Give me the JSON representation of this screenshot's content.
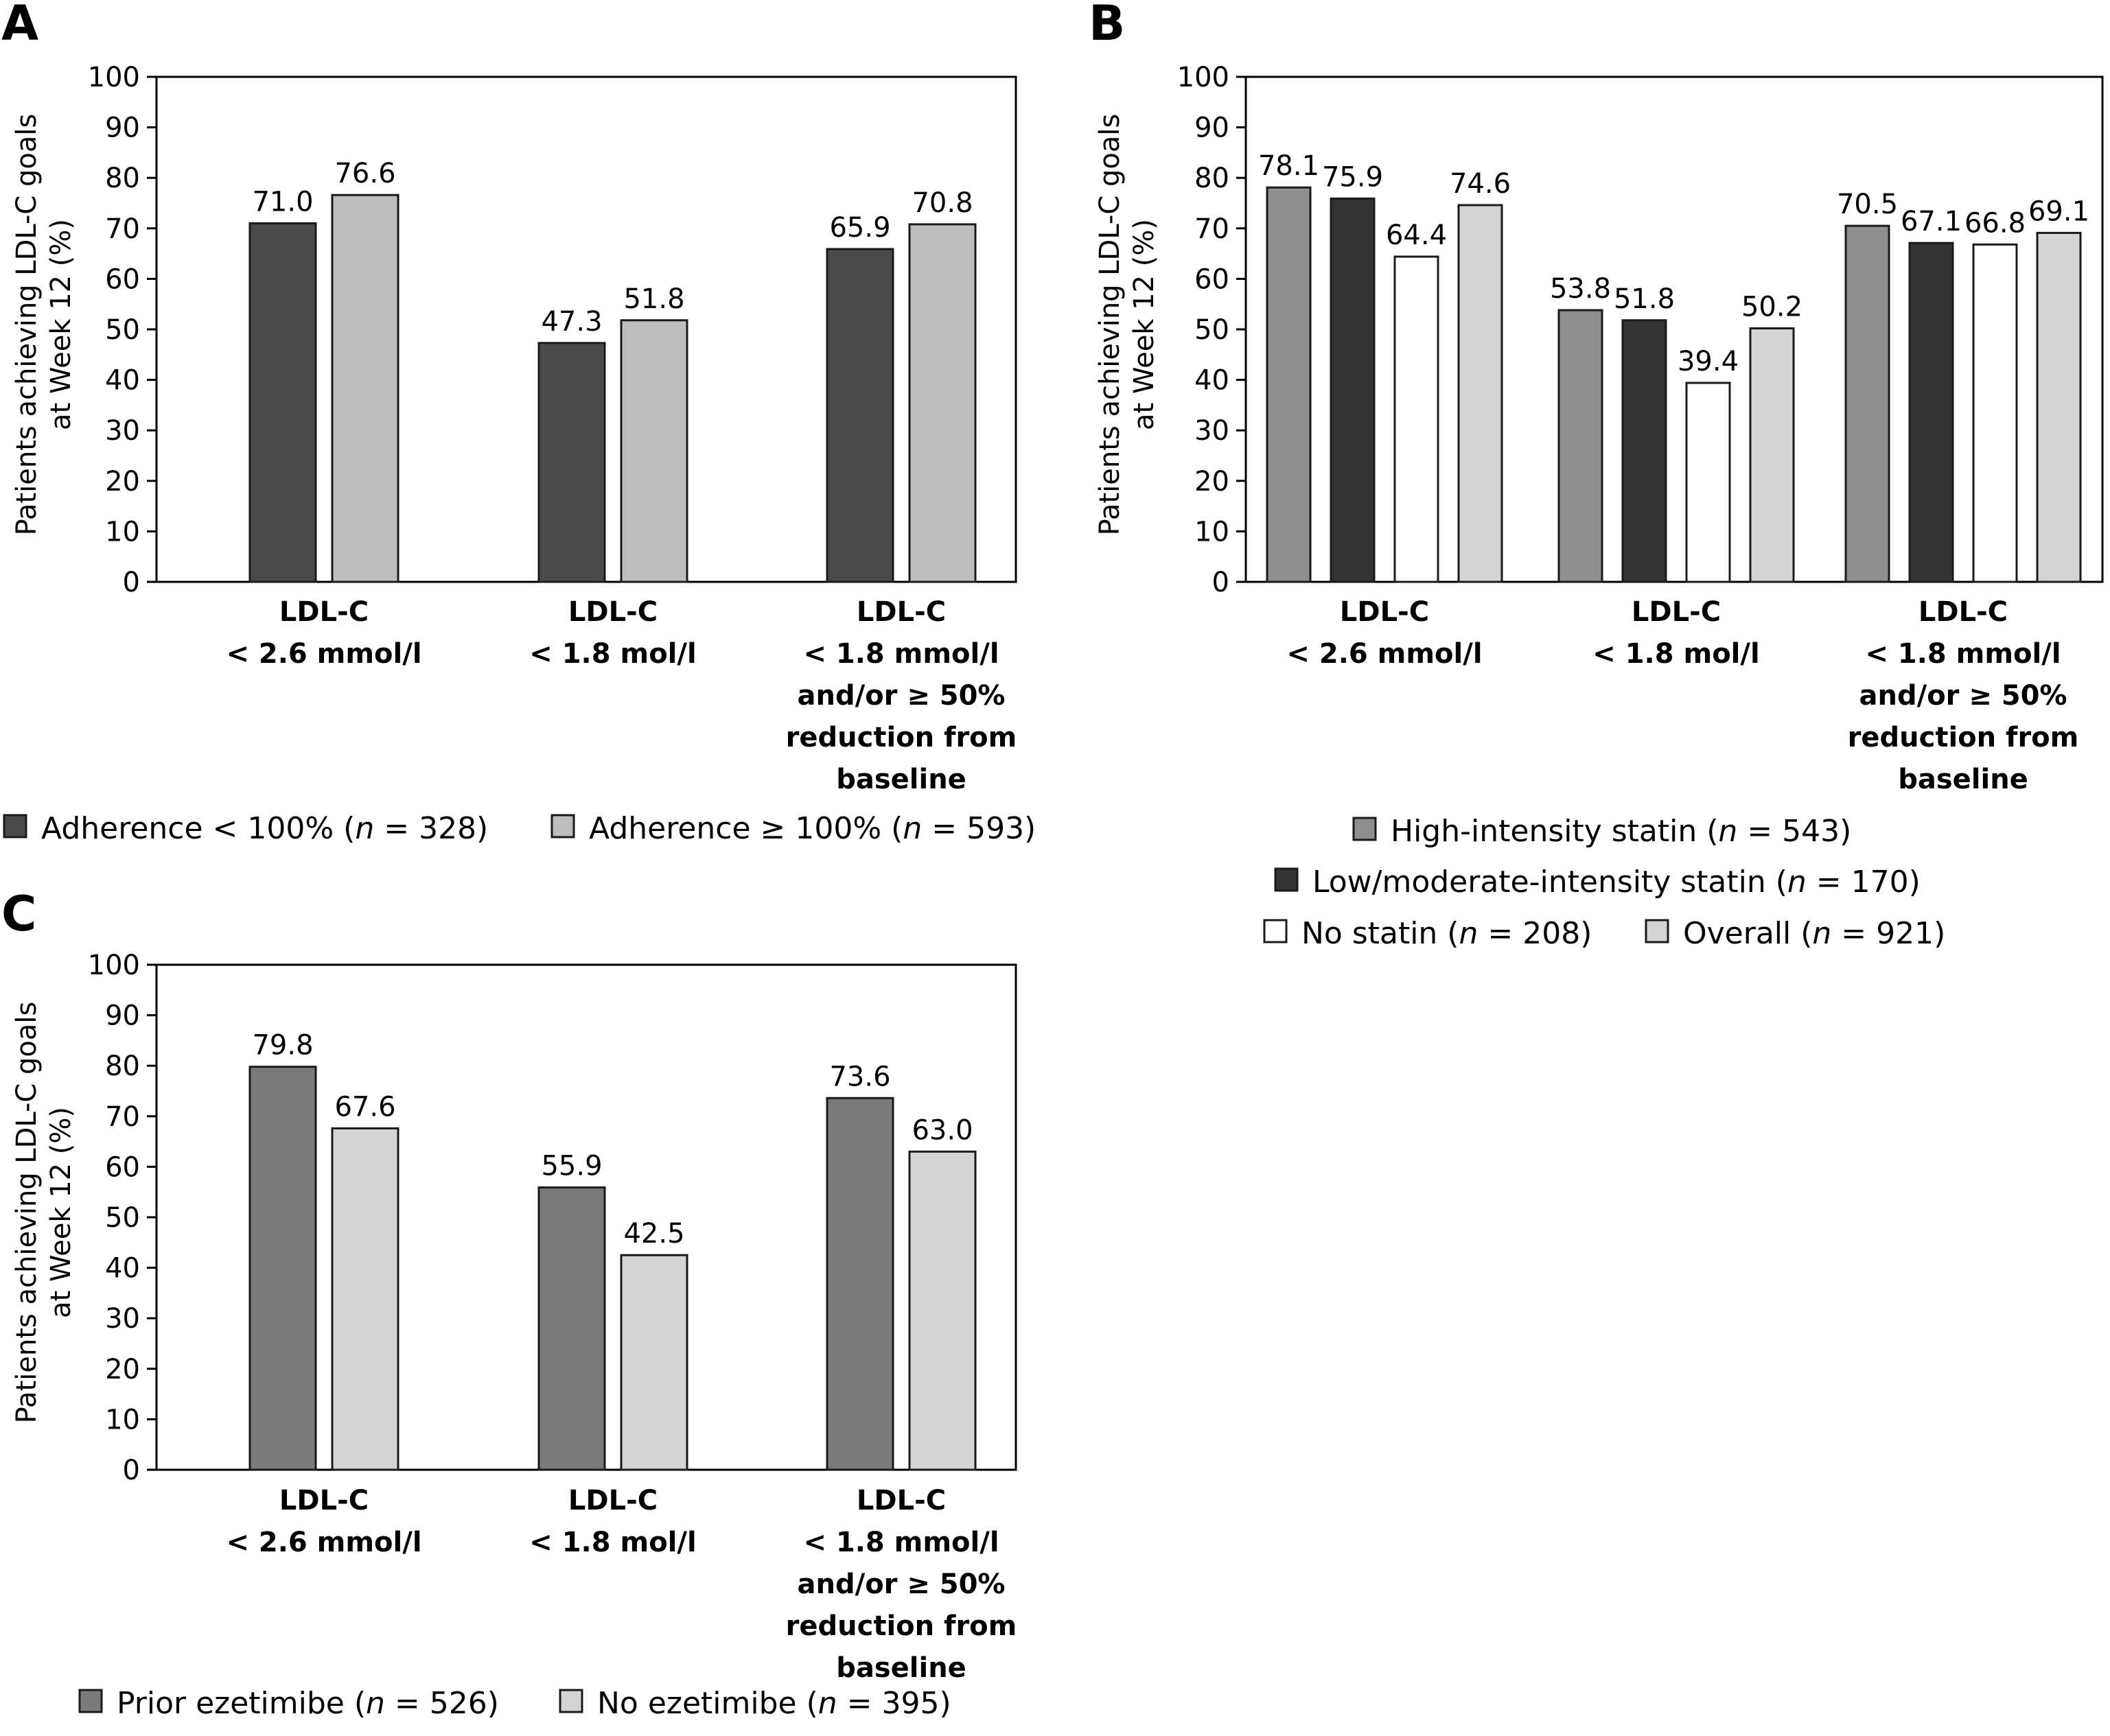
{
  "chart_data": [
    {
      "panel": "A",
      "type": "bar",
      "ylabel": [
        "Patients achieving LDL-C goals",
        "at Week 12 (%)"
      ],
      "ylim": [
        0,
        100
      ],
      "yticks": [
        0,
        10,
        20,
        30,
        40,
        50,
        60,
        70,
        80,
        90,
        100
      ],
      "categories": [
        [
          "LDL-C",
          "< 2.6 mmol/l"
        ],
        [
          "LDL-C",
          "< 1.8 mol/l"
        ],
        [
          "LDL-C",
          "< 1.8 mmol/l",
          "and/or ≥ 50%",
          "reduction from",
          "baseline"
        ]
      ],
      "series": [
        {
          "legend": [
            "Adherence < 100% (",
            "n",
            " = 328)"
          ],
          "color": "#4a4a4a",
          "values": [
            71.0,
            47.3,
            65.9
          ],
          "labels": [
            "71.0",
            "47.3",
            "65.9"
          ]
        },
        {
          "legend": [
            "Adherence ≥ 100% (",
            "n",
            " = 593)"
          ],
          "color": "#bdbdbd",
          "values": [
            76.6,
            51.8,
            70.8
          ],
          "labels": [
            "76.6",
            "51.8",
            "70.8"
          ]
        }
      ],
      "grid": false,
      "legend_position": "bottom"
    },
    {
      "panel": "B",
      "type": "bar",
      "ylabel": [
        "Patients achieving LDL-C goals",
        "at Week 12 (%)"
      ],
      "ylim": [
        0,
        100
      ],
      "yticks": [
        0,
        10,
        20,
        30,
        40,
        50,
        60,
        70,
        80,
        90,
        100
      ],
      "categories": [
        [
          "LDL-C",
          "< 2.6 mmol/l"
        ],
        [
          "LDL-C",
          "< 1.8 mol/l"
        ],
        [
          "LDL-C",
          "< 1.8 mmol/l",
          "and/or ≥ 50%",
          "reduction from",
          "baseline"
        ]
      ],
      "series": [
        {
          "legend": [
            "High-intensity statin (",
            "n",
            " = 543)"
          ],
          "color": "#8f8f8f",
          "values": [
            78.1,
            53.8,
            70.5
          ],
          "labels": [
            "78.1",
            "53.8",
            "70.5"
          ]
        },
        {
          "legend": [
            "Low/moderate-intensity statin (",
            "n",
            " = 170)"
          ],
          "color": "#333333",
          "values": [
            75.9,
            51.8,
            67.1
          ],
          "labels": [
            "75.9",
            "51.8",
            "67.1"
          ]
        },
        {
          "legend": [
            "No statin (",
            "n",
            " = 208)"
          ],
          "color": "#ffffff",
          "values": [
            64.4,
            39.4,
            66.8
          ],
          "labels": [
            "64.4",
            "39.4",
            "66.8"
          ]
        },
        {
          "legend": [
            "Overall (",
            "n",
            " = 921)"
          ],
          "color": "#d4d4d4",
          "values": [
            74.6,
            50.2,
            69.1
          ],
          "labels": [
            "74.6",
            "50.2",
            "69.1"
          ]
        }
      ],
      "grid": false,
      "legend_position": "bottom"
    },
    {
      "panel": "C",
      "type": "bar",
      "ylabel": [
        "Patients achieving LDL-C goals",
        "at Week 12 (%)"
      ],
      "ylim": [
        0,
        100
      ],
      "yticks": [
        0,
        10,
        20,
        30,
        40,
        50,
        60,
        70,
        80,
        90,
        100
      ],
      "categories": [
        [
          "LDL-C",
          "< 2.6 mmol/l"
        ],
        [
          "LDL-C",
          "< 1.8 mol/l"
        ],
        [
          "LDL-C",
          "< 1.8 mmol/l",
          "and/or ≥ 50%",
          "reduction from",
          "baseline"
        ]
      ],
      "series": [
        {
          "legend": [
            "Prior ezetimibe (",
            "n",
            " = 526)"
          ],
          "color": "#7a7a7a",
          "values": [
            79.8,
            55.9,
            73.6
          ],
          "labels": [
            "79.8",
            "55.9",
            "73.6"
          ]
        },
        {
          "legend": [
            "No ezetimibe (",
            "n",
            " = 395)"
          ],
          "color": "#d4d4d4",
          "values": [
            67.6,
            42.5,
            63.0
          ],
          "labels": [
            "67.6",
            "42.5",
            "63.0"
          ]
        }
      ],
      "grid": false,
      "legend_position": "bottom"
    }
  ]
}
